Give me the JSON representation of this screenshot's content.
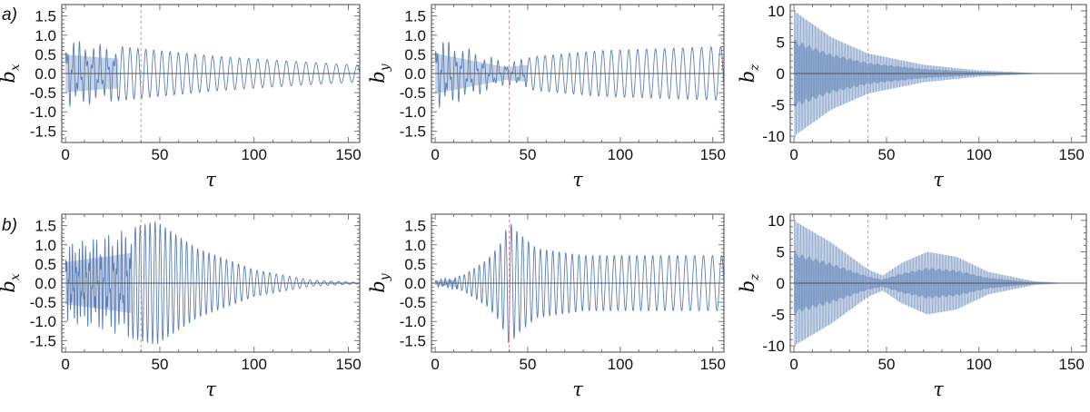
{
  "figure": {
    "row_labels": [
      "a)",
      "b)"
    ]
  },
  "chart_data": [
    {
      "id": "a-bx",
      "row": "a)",
      "type": "line",
      "xlabel": "τ",
      "ylabel": {
        "base": "b",
        "sub": "x"
      },
      "xlim": [
        -2,
        156
      ],
      "ylim": [
        -1.8,
        1.8
      ],
      "xticks": [
        0,
        50,
        100,
        150
      ],
      "xtick_labels": [
        "0",
        "50",
        "100",
        "150"
      ],
      "yticks": [
        -1.5,
        -1.0,
        -0.5,
        0.0,
        0.5,
        1.0,
        1.5
      ],
      "ytick_labels": [
        "-1.5",
        "-1.0",
        "-0.5",
        "0.0",
        "0.5",
        "1.0",
        "1.5"
      ],
      "marker_line_x": 40,
      "grid": false,
      "color": "#5b7fb5",
      "signal": {
        "kind": "oscillation",
        "amplitude_at": [
          [
            0,
            0.9
          ],
          [
            20,
            0.75
          ],
          [
            45,
            0.62
          ],
          [
            80,
            0.45
          ],
          [
            120,
            0.32
          ],
          [
            155,
            0.22
          ]
        ],
        "period": [
          [
            0,
            3.2
          ],
          [
            25,
            4.0
          ],
          [
            155,
            5.6
          ]
        ],
        "dense_until": 28
      }
    },
    {
      "id": "a-by",
      "row": "a)",
      "type": "line",
      "xlabel": "τ",
      "ylabel": {
        "base": "b",
        "sub": "y"
      },
      "xlim": [
        -2,
        156
      ],
      "ylim": [
        -1.8,
        1.8
      ],
      "xticks": [
        0,
        50,
        100,
        150
      ],
      "xtick_labels": [
        "0",
        "50",
        "100",
        "150"
      ],
      "yticks": [
        -1.5,
        -1.0,
        -0.5,
        0.0,
        0.5,
        1.0,
        1.5
      ],
      "ytick_labels": [
        "-1.5",
        "-1.0",
        "-0.5",
        "0.0",
        "0.5",
        "1.0",
        "1.5"
      ],
      "marker_line_x": 40,
      "grid": false,
      "color": "#5b7fb5",
      "signal": {
        "kind": "oscillation",
        "amplitude_at": [
          [
            0,
            0.95
          ],
          [
            15,
            0.7
          ],
          [
            38,
            0.3
          ],
          [
            55,
            0.45
          ],
          [
            90,
            0.6
          ],
          [
            155,
            0.7
          ]
        ],
        "period": [
          [
            0,
            3.2
          ],
          [
            25,
            4.0
          ],
          [
            155,
            5.2
          ]
        ],
        "dense_until": 50
      }
    },
    {
      "id": "a-bz",
      "row": "a)",
      "type": "line",
      "xlabel": "τ",
      "ylabel": {
        "base": "b",
        "sub": "z"
      },
      "xlim": [
        -2,
        158
      ],
      "ylim": [
        -11,
        11
      ],
      "xticks": [
        0,
        50,
        100,
        150
      ],
      "xtick_labels": [
        "0",
        "50",
        "100",
        "150"
      ],
      "yticks": [
        -10,
        -5,
        0,
        5,
        10
      ],
      "ytick_labels": [
        "-10",
        "-5",
        "0",
        "5",
        "10"
      ],
      "marker_line_x": 40,
      "grid": false,
      "color": "#5b7fb5",
      "signal": {
        "kind": "envelope",
        "amplitude_at": [
          [
            0,
            10
          ],
          [
            20,
            5.8
          ],
          [
            40,
            3.2
          ],
          [
            70,
            1.4
          ],
          [
            100,
            0.5
          ],
          [
            130,
            0.08
          ],
          [
            158,
            0
          ]
        ],
        "inner_fraction": 0.55
      }
    },
    {
      "id": "b-bx",
      "row": "b)",
      "type": "line",
      "xlabel": "τ",
      "ylabel": {
        "base": "b",
        "sub": "x"
      },
      "xlim": [
        -2,
        156
      ],
      "ylim": [
        -1.8,
        1.8
      ],
      "xticks": [
        0,
        50,
        100,
        150
      ],
      "xtick_labels": [
        "0",
        "50",
        "100",
        "150"
      ],
      "yticks": [
        -1.5,
        -1.0,
        -0.5,
        0.0,
        0.5,
        1.0,
        1.5
      ],
      "ytick_labels": [
        "-1.5",
        "-1.0",
        "-0.5",
        "0.0",
        "0.5",
        "1.0",
        "1.5"
      ],
      "marker_line_x": 40,
      "grid": false,
      "color": "#5b7fb5",
      "signal": {
        "kind": "oscillation",
        "amplitude_at": [
          [
            0,
            1.0
          ],
          [
            25,
            1.3
          ],
          [
            40,
            1.5
          ],
          [
            48,
            1.6
          ],
          [
            70,
            0.9
          ],
          [
            100,
            0.35
          ],
          [
            130,
            0.08
          ],
          [
            156,
            0.02
          ]
        ],
        "period": [
          [
            0,
            1.6
          ],
          [
            40,
            2.6
          ],
          [
            156,
            4.0
          ]
        ],
        "dense_until": 35
      }
    },
    {
      "id": "b-by",
      "row": "b)",
      "type": "line",
      "xlabel": "τ",
      "ylabel": {
        "base": "b",
        "sub": "y"
      },
      "xlim": [
        -2,
        156
      ],
      "ylim": [
        -1.8,
        1.8
      ],
      "xticks": [
        0,
        50,
        100,
        150
      ],
      "xtick_labels": [
        "0",
        "50",
        "100",
        "150"
      ],
      "yticks": [
        -1.5,
        -1.0,
        -0.5,
        0.0,
        0.5,
        1.0,
        1.5
      ],
      "ytick_labels": [
        "-1.5",
        "-1.0",
        "-0.5",
        "0.0",
        "0.5",
        "1.0",
        "1.5"
      ],
      "marker_line_x": 40,
      "grid": false,
      "color": "#5b7fb5",
      "signal": {
        "kind": "oscillation",
        "amplitude_at": [
          [
            0,
            0.1
          ],
          [
            15,
            0.2
          ],
          [
            28,
            0.6
          ],
          [
            35,
            1.0
          ],
          [
            40,
            1.6
          ],
          [
            45,
            1.3
          ],
          [
            55,
            0.9
          ],
          [
            80,
            0.72
          ],
          [
            156,
            0.72
          ]
        ],
        "period": [
          [
            0,
            2.4
          ],
          [
            40,
            3.0
          ],
          [
            156,
            5.0
          ]
        ],
        "dense_until": 12
      }
    },
    {
      "id": "b-bz",
      "row": "b)",
      "type": "line",
      "xlabel": "τ",
      "ylabel": {
        "base": "b",
        "sub": "z"
      },
      "xlim": [
        -2,
        158
      ],
      "ylim": [
        -11,
        11
      ],
      "xticks": [
        0,
        50,
        100,
        150
      ],
      "xtick_labels": [
        "0",
        "50",
        "100",
        "150"
      ],
      "yticks": [
        -10,
        -5,
        0,
        5,
        10
      ],
      "ytick_labels": [
        "-10",
        "-5",
        "0",
        "5",
        "10"
      ],
      "marker_line_x": 40,
      "grid": false,
      "color": "#5b7fb5",
      "signal": {
        "kind": "envelope",
        "amplitude_at": [
          [
            0,
            10
          ],
          [
            20,
            6.5
          ],
          [
            40,
            2.2
          ],
          [
            48,
            1.2
          ],
          [
            58,
            3.2
          ],
          [
            72,
            5.0
          ],
          [
            88,
            4.2
          ],
          [
            105,
            1.8
          ],
          [
            130,
            0.3
          ],
          [
            145,
            0.05
          ],
          [
            158,
            0
          ]
        ],
        "inner_fraction": 0.5
      }
    }
  ]
}
